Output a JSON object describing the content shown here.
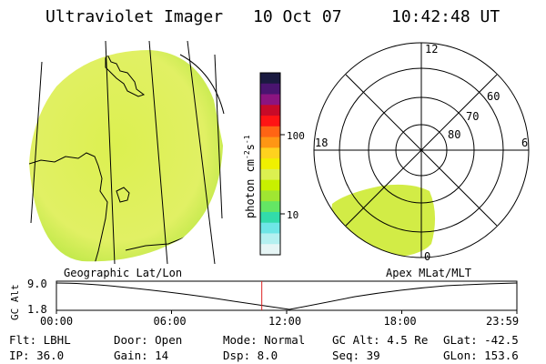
{
  "header": {
    "instrument": "Ultraviolet Imager",
    "date": "10 Oct 07",
    "time": "10:42:48 UT"
  },
  "colorbar": {
    "label": "photon cm",
    "label_sup1": "-2",
    "label_mid": "s",
    "label_sup2": "-1",
    "tick_100": "100",
    "tick_10": "10",
    "colors_top_to_bottom": [
      "#1a1a40",
      "#4a1470",
      "#8c1480",
      "#c80a28",
      "#ff1414",
      "#ff6414",
      "#ff9614",
      "#ffd21e",
      "#f0f000",
      "#dcf050",
      "#c8f000",
      "#a0e632",
      "#64e664",
      "#32dcaa",
      "#6ee6e6",
      "#b4f0f0",
      "#e6f5f5"
    ]
  },
  "geo_map": {
    "fill_color": "#dcf050",
    "fill_color_edge": "#b4e640"
  },
  "polar_plot": {
    "labels": {
      "top": "12",
      "left": "18",
      "right": "6",
      "bottom": "0",
      "r60": "60",
      "r70": "70",
      "r80": "80"
    }
  },
  "labels": {
    "geo": "Geographic Lat/Lon",
    "apex": "Apex MLat/MLT"
  },
  "altitude_plot": {
    "ylabel": "GC Alt",
    "ytick_top": "9.0",
    "ytick_bottom": "1.8",
    "xticks": [
      "00:00",
      "06:00",
      "12:00",
      "18:00",
      "23:59"
    ],
    "marker_color": "#dd2222",
    "current_time_fraction": 0.446
  },
  "info": {
    "row1": {
      "flt": "Flt: LBHL",
      "door": "Door: Open",
      "mode": "Mode: Normal",
      "gcalt": "GC Alt: 4.5 Re",
      "glat": "GLat: -42.5"
    },
    "row2": {
      "ip": "IP: 36.0",
      "gain": "Gain: 14",
      "dsp": "Dsp:    8.0",
      "seq": "Seq: 39",
      "glon": "GLon: 153.6"
    }
  }
}
